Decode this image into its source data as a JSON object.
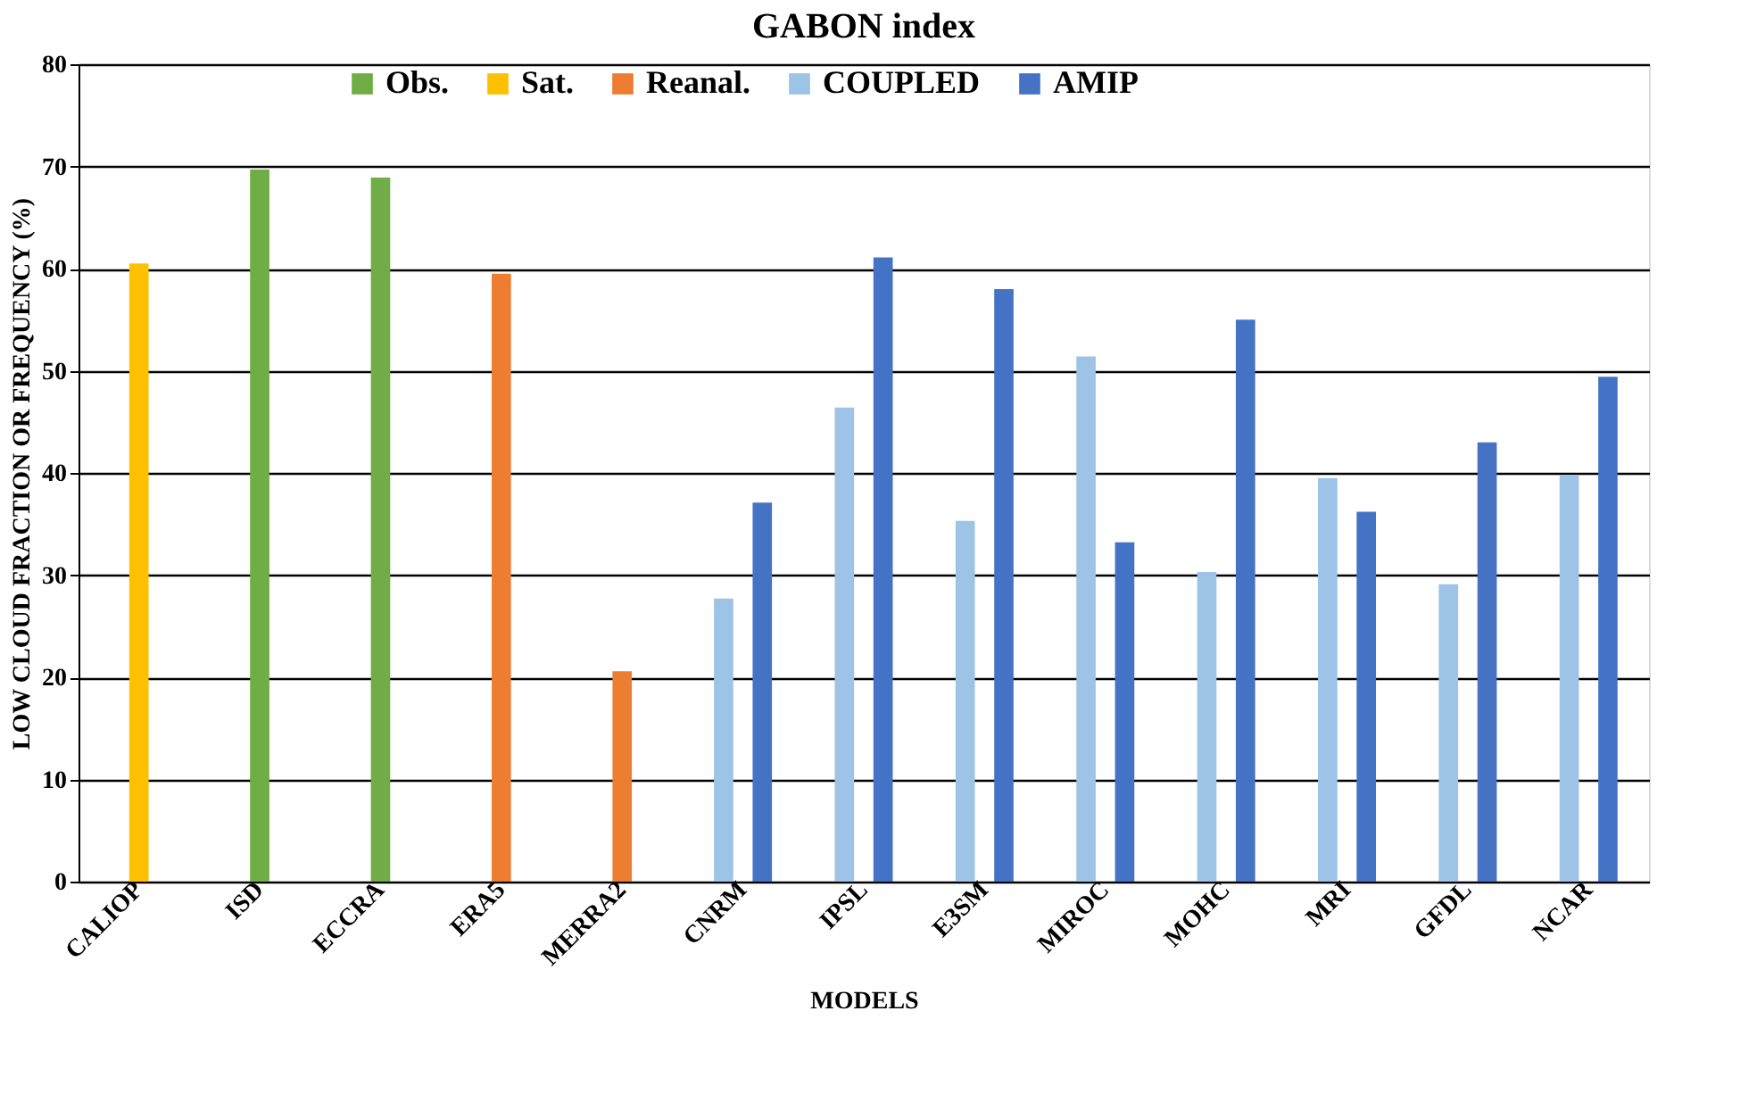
{
  "chart_data": {
    "type": "bar",
    "title": "GABON index",
    "xlabel": "MODELS",
    "ylabel": "LOW CLOUD FRACTION OR FREQUENCY (%)",
    "categories": [
      "CALIOP",
      "ISD",
      "ECCRA",
      "ERA5",
      "MERRA2",
      "CNRM",
      "IPSL",
      "E3SM",
      "MIROC",
      "MOHC",
      "MRI",
      "GFDL",
      "NCAR"
    ],
    "series": [
      {
        "name": "Obs.",
        "color": "#70ad47",
        "values": [
          null,
          69.7,
          68.9,
          null,
          null,
          null,
          null,
          null,
          null,
          null,
          null,
          null,
          null
        ]
      },
      {
        "name": "Sat.",
        "color": "#ffc000",
        "values": [
          60.5,
          null,
          null,
          null,
          null,
          null,
          null,
          null,
          null,
          null,
          null,
          null,
          null
        ]
      },
      {
        "name": "Reanal.",
        "color": "#ed7d31",
        "values": [
          null,
          null,
          null,
          59.5,
          20.6,
          null,
          null,
          null,
          null,
          null,
          null,
          null,
          null
        ]
      },
      {
        "name": "COUPLED",
        "color": "#9dc3e6",
        "values": [
          null,
          null,
          null,
          null,
          null,
          27.7,
          46.4,
          35.3,
          51.4,
          30.3,
          39.5,
          29.1,
          39.8
        ]
      },
      {
        "name": "AMIP",
        "color": "#4472c4",
        "values": [
          null,
          null,
          null,
          null,
          null,
          37.1,
          61.1,
          58.0,
          33.2,
          55.0,
          36.2,
          43.0,
          49.4
        ]
      }
    ],
    "ylim": [
      0,
      80
    ],
    "yticks": [
      0,
      10,
      20,
      30,
      40,
      50,
      60,
      70,
      80
    ],
    "grid": "y",
    "legend": "top"
  }
}
